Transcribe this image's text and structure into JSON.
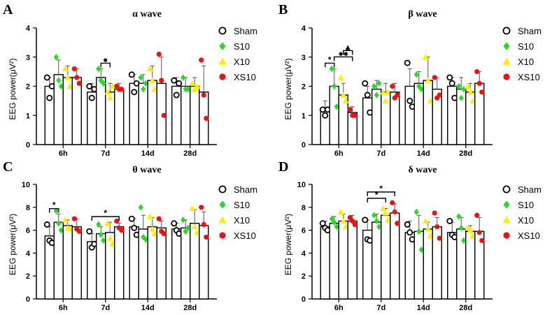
{
  "chart_data": [
    {
      "panel": "A",
      "type": "bar",
      "title": "α wave",
      "ylabel": "EEG power(μV²)",
      "ylim": [
        0,
        4
      ],
      "yticks": [
        0,
        1,
        2,
        3,
        4
      ],
      "categories": [
        "6h",
        "7d",
        "14d",
        "28d"
      ],
      "legend": [
        "Sham",
        "S10",
        "X10",
        "XS10"
      ],
      "series": [
        {
          "name": "Sham",
          "values": [
            2.0,
            1.8,
            2.1,
            2.0
          ],
          "errors": [
            0.3,
            0.3,
            0.3,
            0.3
          ],
          "points": [
            [
              2.3,
              1.6,
              2.0
            ],
            [
              2.0,
              1.6,
              1.9
            ],
            [
              2.4,
              1.8,
              2.1
            ],
            [
              2.2,
              1.7,
              2.1
            ]
          ]
        },
        {
          "name": "S10",
          "values": [
            2.4,
            2.3,
            2.1,
            2.0
          ],
          "errors": [
            0.5,
            0.3,
            0.3,
            0.3
          ],
          "points": [
            [
              3.0,
              2.2,
              2.0
            ],
            [
              2.6,
              2.2,
              2.1
            ],
            [
              2.3,
              1.9,
              2.1
            ],
            [
              2.3,
              1.9,
              1.9
            ]
          ]
        },
        {
          "name": "X10",
          "values": [
            2.3,
            1.8,
            2.2,
            2.0
          ],
          "errors": [
            0.4,
            0.3,
            0.5,
            0.3
          ],
          "points": [
            [
              2.6,
              2.3,
              2.0
            ],
            [
              1.8,
              1.6,
              2.0
            ],
            [
              2.6,
              2.2,
              1.9
            ],
            [
              2.1,
              1.9,
              2.0
            ]
          ]
        },
        {
          "name": "XS10",
          "values": [
            2.3,
            1.9,
            2.1,
            1.8
          ],
          "errors": [
            0.3,
            0.2,
            0.9,
            0.9
          ],
          "points": [
            [
              2.6,
              2.3,
              2.1
            ],
            [
              2.0,
              1.9,
              1.9
            ],
            [
              3.1,
              2.2,
              1.0
            ],
            [
              2.9,
              1.7,
              0.9
            ]
          ]
        }
      ],
      "significance": [
        {
          "label": "●",
          "category": "7d",
          "from": "S10",
          "to": "X10"
        }
      ]
    },
    {
      "panel": "B",
      "type": "bar",
      "title": "β wave",
      "ylabel": "EEG power(μV²)",
      "ylim": [
        0,
        4
      ],
      "yticks": [
        0,
        1,
        2,
        3,
        4
      ],
      "categories": [
        "6h",
        "7d",
        "14d",
        "28d"
      ],
      "legend": [
        "Sham",
        "S10",
        "X10",
        "XS10"
      ],
      "series": [
        {
          "name": "Sham",
          "values": [
            1.2,
            1.6,
            2.0,
            2.0
          ],
          "errors": [
            0.3,
            0.4,
            0.6,
            0.3
          ],
          "points": [
            [
              1.2,
              1.0,
              1.2
            ],
            [
              2.1,
              1.7,
              1.1
            ],
            [
              2.8,
              1.5,
              1.3
            ],
            [
              2.3,
              2.1,
              1.6
            ]
          ]
        },
        {
          "name": "S10",
          "values": [
            2.0,
            1.9,
            2.1,
            1.9
          ],
          "errors": [
            0.6,
            0.3,
            0.4,
            0.4
          ],
          "points": [
            [
              2.6,
              2.0,
              1.3
            ],
            [
              2.0,
              1.7,
              2.1
            ],
            [
              2.4,
              2.0,
              1.9
            ],
            [
              2.0,
              1.6,
              1.9
            ]
          ]
        },
        {
          "name": "X10",
          "values": [
            1.7,
            1.8,
            2.2,
            1.8
          ],
          "errors": [
            0.4,
            0.3,
            0.8,
            0.3
          ],
          "points": [
            [
              2.3,
              1.7,
              1.5
            ],
            [
              1.8,
              1.5,
              1.8
            ],
            [
              3.0,
              2.2,
              1.5
            ],
            [
              2.0,
              1.8,
              1.5
            ]
          ]
        },
        {
          "name": "XS10",
          "values": [
            1.1,
            1.8,
            1.9,
            2.1
          ],
          "errors": [
            0.2,
            0.3,
            0.4,
            0.4
          ],
          "points": [
            [
              1.2,
              1.0,
              1.0
            ],
            [
              2.0,
              1.6,
              1.7
            ],
            [
              2.3,
              1.6,
              1.7
            ],
            [
              2.5,
              2.1,
              1.8
            ]
          ]
        }
      ],
      "significance": [
        {
          "label": "*",
          "category": "6h",
          "from": "Sham",
          "to": "S10"
        },
        {
          "label": "●●",
          "category": "6h",
          "from": "S10",
          "to": "XS10"
        },
        {
          "label": "▲",
          "category": "6h",
          "from": "X10",
          "to": "XS10"
        }
      ]
    },
    {
      "panel": "C",
      "type": "bar",
      "title": "θ wave",
      "ylabel": "EEG power(μV²)",
      "ylim": [
        0,
        10
      ],
      "yticks": [
        0,
        2,
        4,
        6,
        8,
        10
      ],
      "categories": [
        "6h",
        "7d",
        "14d",
        "28d"
      ],
      "legend": [
        "Sham",
        "S10",
        "X10",
        "XS10"
      ],
      "series": [
        {
          "name": "Sham",
          "values": [
            5.5,
            5.0,
            6.3,
            6.1
          ],
          "errors": [
            0.8,
            0.7,
            0.7,
            0.5
          ],
          "points": [
            [
              6.5,
              5.1,
              4.9
            ],
            [
              5.9,
              4.5,
              4.8
            ],
            [
              7.0,
              6.2,
              5.6
            ],
            [
              6.6,
              6.0,
              5.7
            ]
          ]
        },
        {
          "name": "S10",
          "values": [
            6.7,
            5.7,
            6.1,
            6.2
          ],
          "errors": [
            0.7,
            0.6,
            1.2,
            0.7
          ],
          "points": [
            [
              7.7,
              6.6,
              6.0
            ],
            [
              6.5,
              5.6,
              5.1
            ],
            [
              8.0,
              5.4,
              5.2
            ],
            [
              6.9,
              5.9,
              6.2
            ]
          ]
        },
        {
          "name": "X10",
          "values": [
            6.4,
            5.8,
            6.3,
            6.6
          ],
          "errors": [
            0.5,
            0.9,
            0.8,
            1.2
          ],
          "points": [
            [
              6.9,
              6.2,
              6.1
            ],
            [
              6.6,
              5.3,
              4.8
            ],
            [
              7.2,
              6.1,
              5.7
            ],
            [
              7.9,
              6.3,
              5.8
            ]
          ]
        },
        {
          "name": "XS10",
          "values": [
            6.3,
            6.3,
            6.2,
            6.4
          ],
          "errors": [
            0.7,
            0.3,
            0.6,
            1.2
          ],
          "points": [
            [
              7.0,
              6.1,
              5.9
            ],
            [
              6.8,
              6.2,
              6.0
            ],
            [
              7.0,
              5.9,
              5.7
            ],
            [
              8.0,
              6.5,
              5.4
            ]
          ]
        }
      ],
      "significance": [
        {
          "label": "*",
          "category": "6h",
          "from": "Sham",
          "to": "S10"
        },
        {
          "label": "*",
          "category": "7d",
          "from": "Sham",
          "to": "XS10"
        }
      ]
    },
    {
      "panel": "D",
      "type": "bar",
      "title": "δ wave",
      "ylabel": "EEG power(μV²)",
      "ylim": [
        0,
        10
      ],
      "yticks": [
        0,
        2,
        4,
        6,
        8,
        10
      ],
      "categories": [
        "6h",
        "7d",
        "14d",
        "28d"
      ],
      "legend": [
        "Sham",
        "S10",
        "X10",
        "XS10"
      ],
      "series": [
        {
          "name": "Sham",
          "values": [
            6.3,
            6.0,
            5.8,
            5.8
          ],
          "errors": [
            0.5,
            0.9,
            1.0,
            0.9
          ],
          "points": [
            [
              6.6,
              6.2,
              6.0
            ],
            [
              6.9,
              5.2,
              5.1
            ],
            [
              6.5,
              5.8,
              5.2
            ],
            [
              6.8,
              5.6,
              5.4
            ]
          ]
        },
        {
          "name": "S10",
          "values": [
            6.6,
            6.7,
            5.9,
            6.1
          ],
          "errors": [
            0.6,
            0.7,
            1.4,
            1.0
          ],
          "points": [
            [
              7.0,
              6.7,
              6.3
            ],
            [
              7.3,
              6.8,
              6.3
            ],
            [
              7.6,
              5.9,
              4.3
            ],
            [
              7.2,
              6.2,
              5.1
            ]
          ]
        },
        {
          "name": "X10",
          "values": [
            6.8,
            7.3,
            6.1,
            5.9
          ],
          "errors": [
            0.6,
            0.6,
            0.6,
            0.5
          ],
          "points": [
            [
              7.6,
              6.8,
              6.3
            ],
            [
              7.9,
              7.5,
              6.9
            ],
            [
              6.8,
              6.1,
              5.5
            ],
            [
              6.2,
              6.0,
              5.5
            ]
          ]
        },
        {
          "name": "XS10",
          "values": [
            6.8,
            7.5,
            6.3,
            5.9
          ],
          "errors": [
            0.5,
            0.8,
            0.8,
            1.2
          ],
          "points": [
            [
              7.1,
              6.8,
              6.5
            ],
            [
              8.4,
              7.6,
              6.6
            ],
            [
              7.5,
              6.3,
              5.3
            ],
            [
              7.3,
              5.8,
              5.1
            ]
          ]
        }
      ],
      "significance": [
        {
          "label": "*",
          "category": "7d",
          "from": "Sham",
          "to": "X10"
        },
        {
          "label": "*",
          "category": "7d",
          "from": "Sham",
          "to": "XS10"
        }
      ]
    }
  ],
  "colors": {
    "Sham": "#000000",
    "S10": "#22dd22",
    "X10": "#ffee00",
    "XS10": "#ee1111"
  },
  "markers": {
    "Sham": "open-circle",
    "S10": "diamond",
    "X10": "triangle",
    "XS10": "filled-circle"
  }
}
